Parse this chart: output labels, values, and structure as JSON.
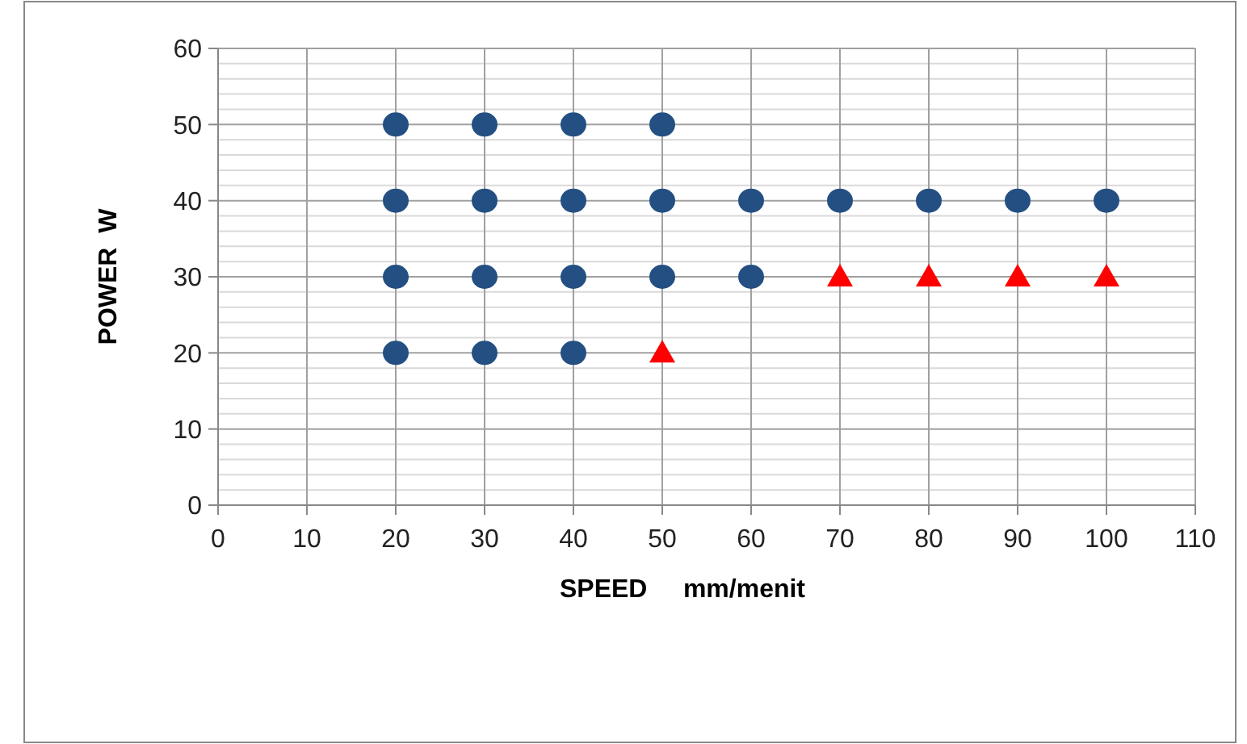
{
  "chart_data": {
    "type": "scatter",
    "xlabel": "SPEED     mm/menit",
    "ylabel": "POWER  W",
    "xlim": [
      0,
      110
    ],
    "xticks": [
      0,
      10,
      20,
      30,
      40,
      50,
      60,
      70,
      80,
      90,
      100,
      110
    ],
    "ylim": [
      0,
      60
    ],
    "yticks": [
      0,
      {
        "value": 2,
        "label": null
      },
      {
        "value": 4,
        "label": null
      },
      {
        "value": 6,
        "label": null
      },
      {
        "value": 8,
        "label": null
      },
      10,
      {
        "value": 12,
        "label": null
      },
      {
        "value": 14,
        "label": null
      },
      {
        "value": 16,
        "label": null
      },
      {
        "value": 18,
        "label": null
      },
      20,
      {
        "value": 22,
        "label": null
      },
      {
        "value": 24,
        "label": null
      },
      {
        "value": 26,
        "label": null
      },
      {
        "value": 28,
        "label": null
      },
      30,
      {
        "value": 32,
        "label": null
      },
      {
        "value": 34,
        "label": null
      },
      {
        "value": 36,
        "label": null
      },
      {
        "value": 38,
        "label": null
      },
      40,
      {
        "value": 42,
        "label": null
      },
      {
        "value": 44,
        "label": null
      },
      {
        "value": 46,
        "label": null
      },
      {
        "value": 48,
        "label": null
      },
      50,
      {
        "value": 52,
        "label": null
      },
      {
        "value": 54,
        "label": null
      },
      {
        "value": 56,
        "label": null
      },
      {
        "value": 58,
        "label": null
      },
      60
    ],
    "grid": true,
    "series": [
      {
        "color": "#234f82",
        "marker": "circle",
        "x": [
          20,
          30,
          40,
          50,
          20,
          30,
          40,
          50,
          60,
          70,
          80,
          90,
          100,
          20,
          30,
          40,
          50,
          60,
          20,
          30,
          40
        ],
        "values": [
          50,
          50,
          50,
          50,
          40,
          40,
          40,
          40,
          40,
          40,
          40,
          40,
          40,
          30,
          30,
          30,
          30,
          30,
          20,
          20,
          20
        ]
      },
      {
        "color": "#ff0000",
        "marker": "triangle",
        "x": [
          50,
          70,
          80,
          90,
          100
        ],
        "values": [
          20,
          30,
          30,
          30,
          30
        ]
      }
    ]
  }
}
